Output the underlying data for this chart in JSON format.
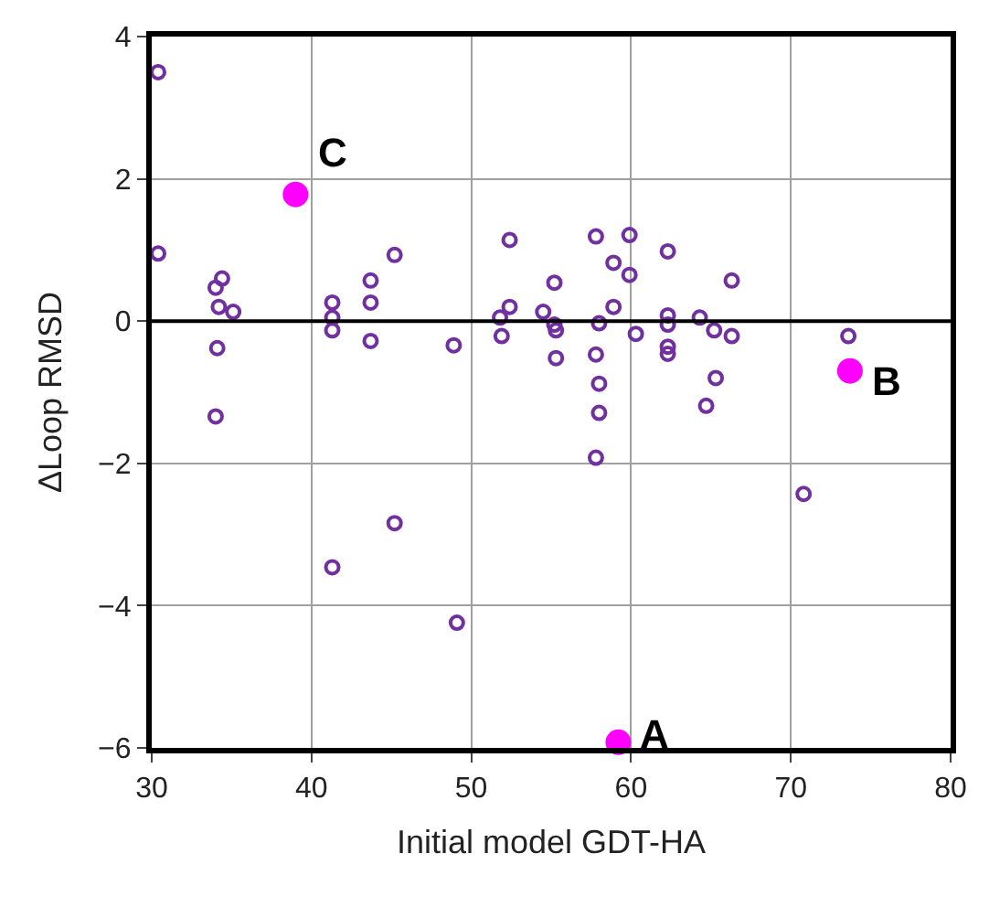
{
  "chart_data": {
    "type": "scatter",
    "xlabel": "Initial model GDT-HA",
    "ylabel": "ΔLoop RMSD",
    "xlim": [
      30,
      80
    ],
    "xticks": [
      30,
      40,
      50,
      60,
      70,
      80
    ],
    "ylim": [
      -6,
      4
    ],
    "yticks": [
      -6,
      -4,
      -2,
      0,
      2,
      4
    ],
    "grid": true,
    "series": [
      {
        "color": "#7030a0",
        "marker": "circle-open",
        "x": [
          30.4,
          30.4,
          34.4,
          34.0,
          34.2,
          35.1,
          34.1,
          34.0,
          41.3,
          41.3,
          41.3,
          43.7,
          43.7,
          43.7,
          45.2,
          48.9,
          51.9,
          51.8,
          52.4,
          52.4,
          54.5,
          55.2,
          55.2,
          55.3,
          55.3,
          57.8,
          58.9,
          59.9,
          59.9,
          58.9,
          58.0,
          57.8,
          58.0,
          58.0,
          57.8,
          60.3,
          62.3,
          62.3,
          62.3,
          62.3,
          62.3,
          64.3,
          65.2,
          66.3,
          66.3,
          65.3,
          64.7,
          73.6,
          70.8,
          45.2,
          41.3,
          49.1
        ],
        "values": [
          3.5,
          0.95,
          0.6,
          0.47,
          0.2,
          0.13,
          -0.38,
          -1.34,
          0.26,
          0.05,
          -0.13,
          0.57,
          0.26,
          -0.28,
          0.93,
          -0.34,
          -0.21,
          0.05,
          0.2,
          1.14,
          0.13,
          0.54,
          -0.05,
          -0.13,
          -0.52,
          1.19,
          0.82,
          1.21,
          0.65,
          0.2,
          -0.03,
          -0.47,
          -0.88,
          -1.29,
          -1.92,
          -0.18,
          0.98,
          0.08,
          -0.05,
          -0.36,
          -0.46,
          0.05,
          -0.13,
          0.57,
          -0.21,
          -0.8,
          -1.19,
          -0.21,
          -2.43,
          -2.84,
          -3.46,
          -4.24
        ]
      },
      {
        "color": "#ff00ff",
        "marker": "circle",
        "x": [
          39.0,
          73.7,
          59.2
        ],
        "values": [
          1.78,
          -0.7,
          -5.92
        ]
      }
    ],
    "ref_lines": [
      {
        "axis": "y",
        "value": 0,
        "color": "#000000"
      }
    ],
    "annotations": [
      {
        "text": "C",
        "x": 39.0,
        "y": 1.78
      },
      {
        "text": "B",
        "x": 73.7,
        "y": -0.7
      },
      {
        "text": "A",
        "x": 59.2,
        "y": -5.92
      }
    ]
  }
}
